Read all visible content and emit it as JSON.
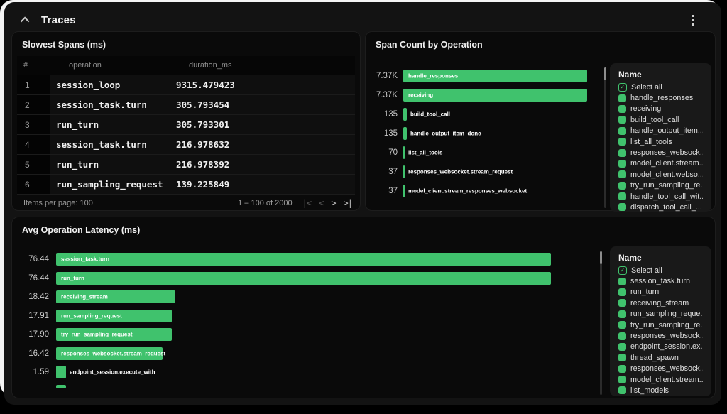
{
  "header": {
    "title": "Traces"
  },
  "colors": {
    "accent_green": "#40c26d",
    "panel_bg": "#0a0a0a",
    "container_bg": "#131313"
  },
  "icons": {
    "collapse": "chevron-up",
    "menu": "kebab-vertical",
    "first_page": "|<",
    "prev_page": "<",
    "next_page": ">",
    "last_page": ">|",
    "checkmark": "✓"
  },
  "slowest_spans": {
    "title": "Slowest Spans (ms)",
    "columns": [
      "#",
      "operation",
      "duration_ms"
    ],
    "rows": [
      {
        "num": "1",
        "operation": "session_loop",
        "duration_ms": "9315.479423"
      },
      {
        "num": "2",
        "operation": "session_task.turn",
        "duration_ms": "305.793454"
      },
      {
        "num": "3",
        "operation": "run_turn",
        "duration_ms": "305.793301"
      },
      {
        "num": "4",
        "operation": "session_task.turn",
        "duration_ms": "216.978632"
      },
      {
        "num": "5",
        "operation": "run_turn",
        "duration_ms": "216.978392"
      },
      {
        "num": "6",
        "operation": "run_sampling_request",
        "duration_ms": "139.225849"
      }
    ],
    "pagination": {
      "items_per_page_label": "Items per page:",
      "items_per_page_value": "100",
      "range_label": "1 – 100 of 2000"
    }
  },
  "span_count_chart": {
    "title": "Span Count by Operation",
    "type": "bar",
    "orientation": "horizontal",
    "max": 7370,
    "bars": [
      {
        "label": "handle_responses",
        "value": 7370,
        "value_display": "7.37K"
      },
      {
        "label": "receiving",
        "value": 7370,
        "value_display": "7.37K"
      },
      {
        "label": "build_tool_call",
        "value": 135,
        "value_display": "135"
      },
      {
        "label": "handle_output_item_done",
        "value": 135,
        "value_display": "135"
      },
      {
        "label": "list_all_tools",
        "value": 70,
        "value_display": "70"
      },
      {
        "label": "responses_websocket.stream_request",
        "value": 37,
        "value_display": "37"
      },
      {
        "label": "model_client.stream_responses_websocket",
        "value": 37,
        "value_display": "37"
      }
    ],
    "legend": {
      "title": "Name",
      "select_all": "Select all",
      "items": [
        "handle_responses",
        "receiving",
        "build_tool_call",
        "handle_output_item...",
        "list_all_tools",
        "responses_websock...",
        "model_client.stream...",
        "model_client.webso...",
        "try_run_sampling_re...",
        "handle_tool_call_wit...",
        "dispatch_tool_call_..."
      ]
    }
  },
  "avg_latency_chart": {
    "title": "Avg Operation Latency (ms)",
    "type": "bar",
    "orientation": "horizontal",
    "max": 76.44,
    "bars": [
      {
        "label": "session_task.turn",
        "value": 76.44,
        "value_display": "76.44"
      },
      {
        "label": "run_turn",
        "value": 76.44,
        "value_display": "76.44"
      },
      {
        "label": "receiving_stream",
        "value": 18.42,
        "value_display": "18.42"
      },
      {
        "label": "run_sampling_request",
        "value": 17.91,
        "value_display": "17.91"
      },
      {
        "label": "try_run_sampling_request",
        "value": 17.9,
        "value_display": "17.90"
      },
      {
        "label": "responses_websocket.stream_request",
        "value": 16.42,
        "value_display": "16.42"
      },
      {
        "label": "endpoint_session.execute_with",
        "value": 1.59,
        "value_display": "1.59"
      },
      {
        "label": "",
        "value": 1.55,
        "value_display": "",
        "partial": true
      }
    ],
    "legend": {
      "title": "Name",
      "select_all": "Select all",
      "items": [
        "session_task.turn",
        "run_turn",
        "receiving_stream",
        "run_sampling_reque...",
        "try_run_sampling_re...",
        "responses_websock...",
        "endpoint_session.ex...",
        "thread_spawn",
        "responses_websock...",
        "model_client.stream...",
        "list_models"
      ]
    }
  }
}
